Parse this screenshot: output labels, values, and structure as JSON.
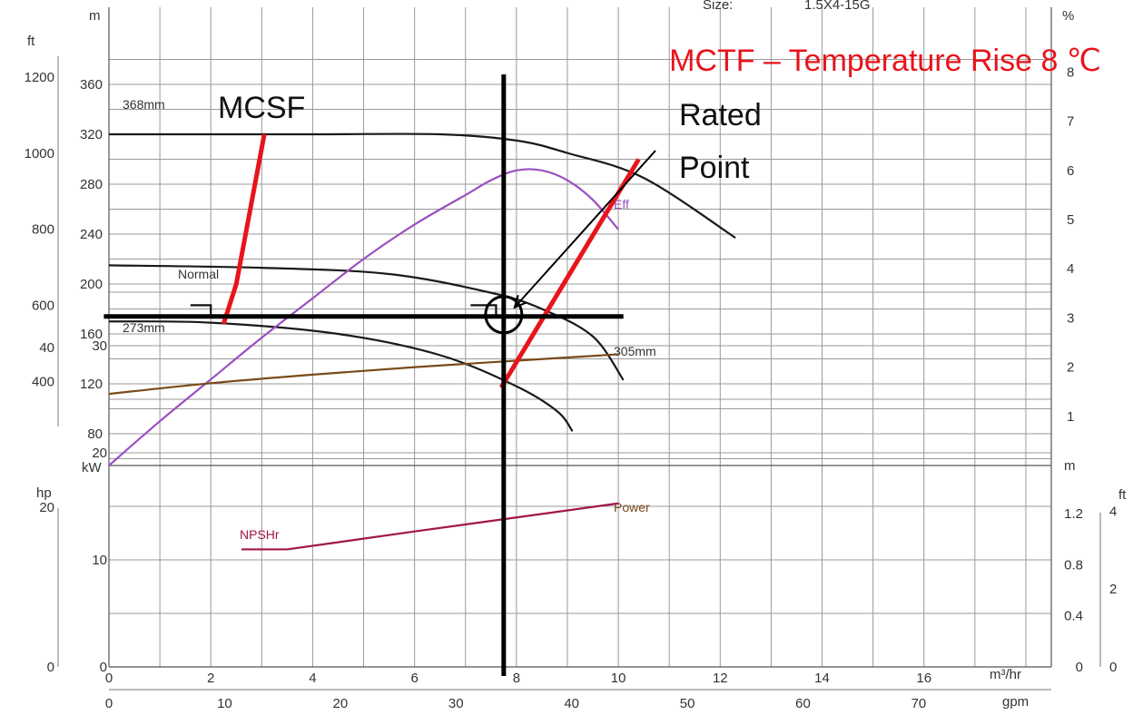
{
  "header": {
    "size_label": "Size:",
    "size_value": "1.5X4-15G"
  },
  "units": {
    "head_ft": "ft",
    "head_m": "m",
    "eff_pct": "%",
    "power_hp": "hp",
    "power_kw": "kW",
    "npsh_m": "m",
    "npsh_ft": "ft",
    "flow_m3hr": "m³/hr",
    "flow_gpm": "gpm"
  },
  "colors": {
    "grid": "#9a9a9a",
    "head_curve": "#1a1a1a",
    "efficiency": "#9b4fc0",
    "npshr": "#a0154a",
    "power": "#7a4a1a",
    "annotation_red": "#e8141b",
    "annotation_black": "#000000"
  },
  "chart_data": {
    "type": "line",
    "x_primary": {
      "unit": "m³/hr",
      "ticks": [
        0,
        2,
        4,
        6,
        8,
        10,
        12,
        14,
        16
      ],
      "range": [
        0,
        18.5
      ]
    },
    "x_secondary": {
      "unit": "gpm",
      "ticks": [
        0,
        10,
        20,
        30,
        40,
        50,
        60,
        70
      ]
    },
    "y_head_m": {
      "unit": "m",
      "ticks": [
        80,
        120,
        160,
        200,
        240,
        280,
        320,
        360
      ],
      "range": [
        40,
        380
      ]
    },
    "y_head_ft": {
      "unit": "ft",
      "ticks": [
        400,
        600,
        800,
        1000,
        1200
      ]
    },
    "y_eff_pct": {
      "unit": "%",
      "ticks": [
        1,
        2,
        3,
        4,
        5,
        6,
        7,
        8
      ]
    },
    "y_power_kw": {
      "unit": "kW",
      "ticks": [
        0,
        10,
        20,
        30
      ],
      "range": [
        0,
        38
      ]
    },
    "y_power_hp": {
      "unit": "hp",
      "ticks": [
        0,
        20,
        40
      ]
    },
    "y_npsh_m": {
      "unit": "m",
      "ticks": [
        0,
        0.4,
        0.8,
        1.2
      ]
    },
    "y_npsh_ft": {
      "unit": "ft",
      "ticks": [
        0,
        2,
        4
      ]
    },
    "head_curves": [
      {
        "name": "368mm",
        "points": [
          [
            0,
            320
          ],
          [
            4,
            320
          ],
          [
            6.5,
            320
          ],
          [
            8,
            315
          ],
          [
            9,
            305
          ],
          [
            10.5,
            285
          ],
          [
            12.3,
            237
          ]
        ]
      },
      {
        "name": "305mm",
        "points": [
          [
            0,
            215
          ],
          [
            3,
            213
          ],
          [
            5.5,
            208
          ],
          [
            7.5,
            193
          ],
          [
            8.5,
            180
          ],
          [
            9.5,
            158
          ],
          [
            10.1,
            123
          ]
        ]
      },
      {
        "name": "273mm",
        "points": [
          [
            0,
            170
          ],
          [
            2,
            169
          ],
          [
            4.5,
            160
          ],
          [
            6.5,
            143
          ],
          [
            8,
            118
          ],
          [
            8.8,
            98
          ],
          [
            9.1,
            82
          ]
        ]
      }
    ],
    "efficiency": {
      "name": "Eff",
      "points": [
        [
          0,
          0
        ],
        [
          1,
          0.9
        ],
        [
          2,
          1.75
        ],
        [
          3,
          2.6
        ],
        [
          4,
          3.4
        ],
        [
          5,
          4.2
        ],
        [
          6,
          4.9
        ],
        [
          7,
          5.5
        ],
        [
          7.5,
          5.8
        ],
        [
          8,
          6.0
        ],
        [
          8.5,
          6.0
        ],
        [
          9,
          5.8
        ],
        [
          9.5,
          5.4
        ],
        [
          10,
          4.8
        ]
      ]
    },
    "power": {
      "name": "Power",
      "points": [
        [
          0,
          25.5
        ],
        [
          2,
          26.5
        ],
        [
          4,
          27.3
        ],
        [
          6,
          28
        ],
        [
          8,
          28.6
        ],
        [
          10,
          29.2
        ]
      ]
    },
    "npshr": {
      "name": "NPSHr",
      "points": [
        [
          2.6,
          0.92
        ],
        [
          3.5,
          0.92
        ],
        [
          4.4,
          0.97
        ],
        [
          6,
          1.06
        ],
        [
          8,
          1.17
        ],
        [
          10,
          1.28
        ]
      ]
    },
    "operating_lines": [
      {
        "name": "Normal",
        "points": [
          [
            1.6,
            183
          ],
          [
            2,
            183
          ],
          [
            2,
            174
          ],
          [
            2.2,
            174
          ]
        ]
      },
      {
        "points": [
          [
            7.1,
            183
          ],
          [
            7.6,
            183
          ],
          [
            7.6,
            174
          ],
          [
            7.7,
            174
          ]
        ]
      }
    ],
    "annotations": {
      "mcsf": {
        "label": "MCSF",
        "points": [
          [
            2.25,
            168
          ],
          [
            2.5,
            200
          ],
          [
            3.05,
            320
          ]
        ]
      },
      "mctf": {
        "label": "MCTF – Temperature Rise 8 ℃",
        "points": [
          [
            7.7,
            117
          ],
          [
            10.4,
            300
          ]
        ]
      },
      "rated_point": {
        "label_line1": "Rated",
        "label_line2": "Point",
        "x": 7.75,
        "y": 175
      },
      "crosshair": {
        "x": 7.75,
        "y": 174,
        "x_from": -0.1,
        "x_to": 10.1,
        "y_from": -5,
        "y_to": 368
      }
    },
    "labels": {
      "normal": "Normal"
    }
  }
}
